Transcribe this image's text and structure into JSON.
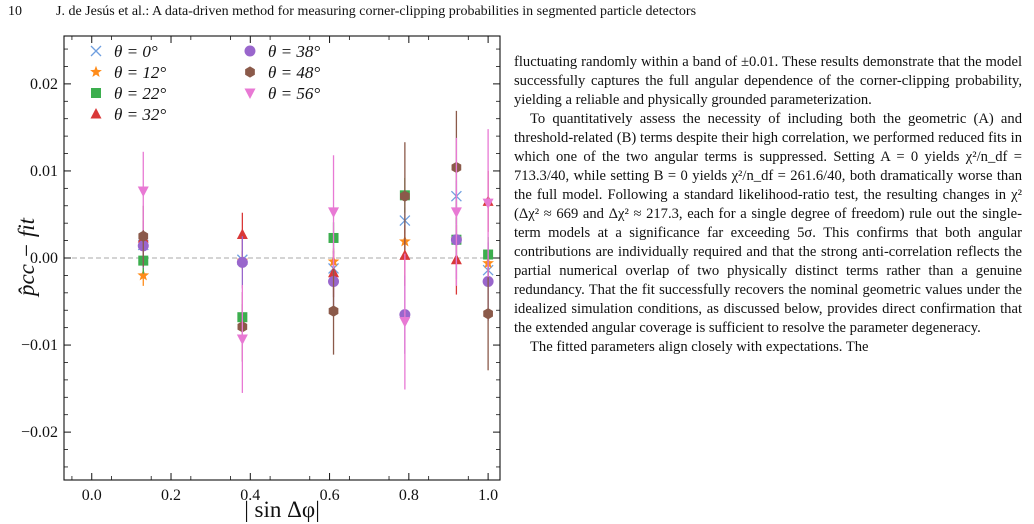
{
  "header": {
    "page_number": "10",
    "running_title": "J. de Jesús et al.: A data-driven method for measuring corner-clipping probabilities in segmented particle detectors"
  },
  "chart_data": {
    "type": "scatter",
    "title": "",
    "xlabel": "| sin Δφ|",
    "ylabel": "p̂cc − fit",
    "xlim": [
      -0.07,
      1.03
    ],
    "ylim": [
      -0.0255,
      0.0255
    ],
    "xticks": [
      0.0,
      0.2,
      0.4,
      0.6,
      0.8,
      1.0
    ],
    "xtick_labels": [
      "0.0",
      "0.2",
      "0.4",
      "0.6",
      "0.8",
      "1.0"
    ],
    "yticks": [
      -0.02,
      -0.01,
      0.0,
      0.01,
      0.02
    ],
    "ytick_labels": [
      "−0.02",
      "−0.01",
      "0.00",
      "0.01",
      "0.02"
    ],
    "reference_line": 0,
    "grid": false,
    "legend_position": "top-left",
    "series": [
      {
        "name": "θ = 0°",
        "marker": "x",
        "color": "#6f9fe0",
        "x": [
          0.13,
          0.38,
          0.61,
          0.79,
          0.92,
          1.0
        ],
        "y": [
          0.0015,
          -0.0002,
          -0.0012,
          0.0043,
          0.0071,
          -0.0014
        ],
        "err": [
          0.0012,
          0.001,
          0.0012,
          0.0015,
          0.0018,
          0.0015
        ]
      },
      {
        "name": "θ = 12°",
        "marker": "star",
        "color": "#ff8c1a",
        "x": [
          0.13,
          0.38,
          0.61,
          0.79,
          0.92,
          1.0
        ],
        "y": [
          -0.002,
          -0.0003,
          -0.0004,
          0.0019,
          0.0021,
          -0.0006
        ],
        "err": [
          0.0012,
          0.001,
          0.0012,
          0.0015,
          0.0018,
          0.0015
        ]
      },
      {
        "name": "θ = 22°",
        "marker": "square",
        "color": "#3cae4e",
        "x": [
          0.13,
          0.38,
          0.61,
          0.79,
          0.92,
          1.0
        ],
        "y": [
          -0.0003,
          -0.0068,
          0.0023,
          0.0072,
          0.0021,
          0.0004
        ],
        "err": [
          0.0015,
          0.0015,
          0.0018,
          0.002,
          0.0025,
          0.002
        ]
      },
      {
        "name": "θ = 32°",
        "marker": "triangle-up",
        "color": "#d93838",
        "x": [
          0.13,
          0.38,
          0.61,
          0.79,
          0.92,
          1.0
        ],
        "y": [
          0.0023,
          0.0027,
          -0.0017,
          0.0003,
          -0.0002,
          0.0065
        ],
        "err": [
          0.002,
          0.0025,
          0.0028,
          0.0035,
          0.004,
          0.0035
        ]
      },
      {
        "name": "θ = 38°",
        "marker": "circle",
        "color": "#9966cc",
        "x": [
          0.13,
          0.38,
          0.61,
          0.79,
          0.92,
          1.0
        ],
        "y": [
          0.0014,
          -0.0005,
          -0.0027,
          -0.0065,
          0.0021,
          -0.0027
        ],
        "err": [
          0.0025,
          0.003,
          0.0035,
          0.0045,
          0.0045,
          0.0045
        ]
      },
      {
        "name": "θ = 48°",
        "marker": "hexagon",
        "color": "#8b5a4a",
        "x": [
          0.13,
          0.38,
          0.61,
          0.79,
          0.92,
          1.0
        ],
        "y": [
          0.0025,
          -0.0079,
          -0.0061,
          0.0071,
          0.0104,
          -0.0064
        ],
        "err": [
          0.0035,
          0.004,
          0.005,
          0.0062,
          0.0065,
          0.0065
        ]
      },
      {
        "name": "θ = 56°",
        "marker": "triangle-down",
        "color": "#e879d4",
        "x": [
          0.13,
          0.38,
          0.61,
          0.79,
          0.92,
          1.0
        ],
        "y": [
          0.0077,
          -0.0093,
          0.0053,
          -0.0073,
          0.0053,
          0.0063
        ],
        "err": [
          0.0045,
          0.0062,
          0.0065,
          0.0078,
          0.0085,
          0.0085
        ]
      }
    ]
  },
  "body": {
    "paragraphs": [
      "fluctuating randomly within a band of ±0.01. These results demonstrate that the model successfully captures the full angular dependence of the corner-clipping probability, yielding a reliable and physically grounded parameterization.",
      "To quantitatively assess the necessity of including both the geometric (A) and threshold-related (B) terms despite their high correlation, we performed reduced fits in which one of the two angular terms is suppressed. Setting A = 0 yields χ²/n_df = 713.3/40, while setting B = 0 yields χ²/n_df = 261.6/40, both dramatically worse than the full model. Following a standard likelihood-ratio test, the resulting changes in χ² (Δχ² ≈ 669 and Δχ² ≈ 217.3, each for a single degree of freedom) rule out the single-term models at a significance far exceeding 5σ. This confirms that both angular contributions are individually required and that the strong anti-correlation reflects the partial numerical overlap of two physically distinct terms rather than a genuine redundancy. That the fit successfully recovers the nominal geometric values under the idealized simulation conditions, as discussed below, provides direct confirmation that the extended angular coverage is sufficient to resolve the parameter degeneracy.",
      "The fitted parameters align closely with expectations. The"
    ]
  }
}
